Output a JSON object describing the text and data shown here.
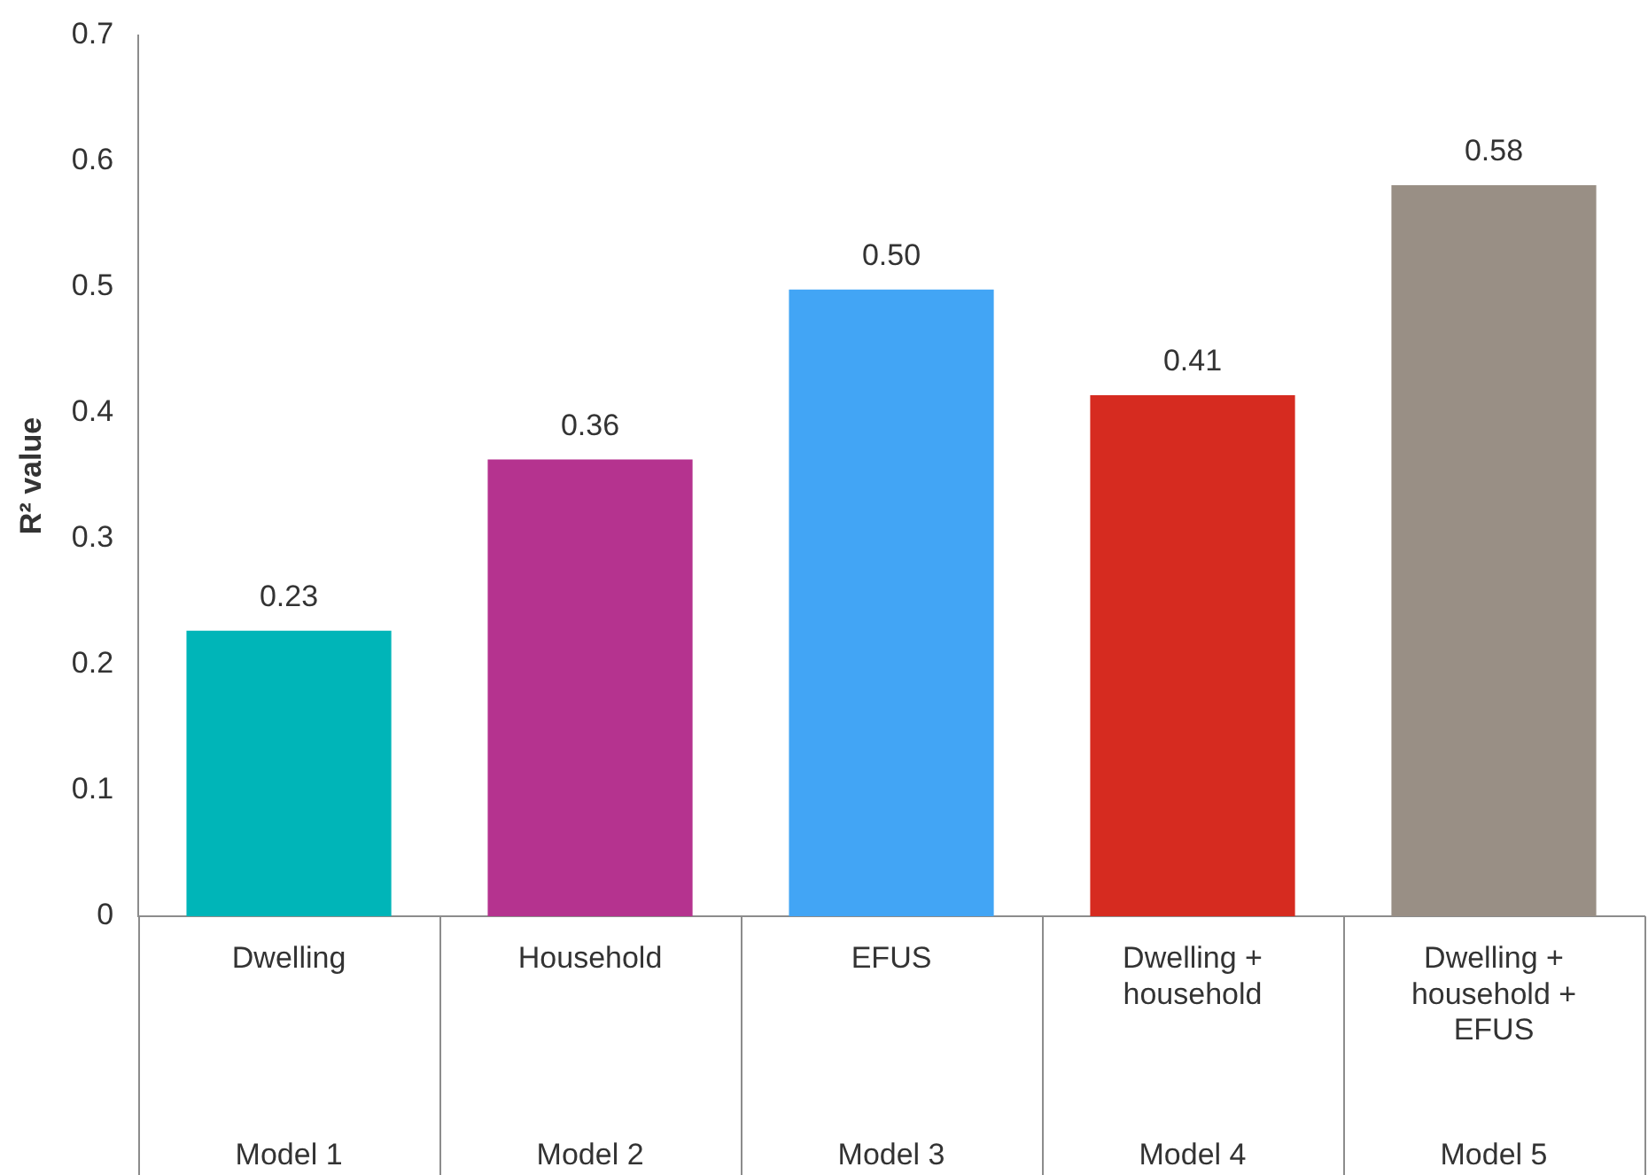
{
  "chart_data": {
    "type": "bar",
    "ylabel": "R² value",
    "categories": [
      "Dwelling",
      "Household",
      "EFUS",
      "Dwelling + household",
      "Dwelling + household + EFUS"
    ],
    "values": [
      0.227,
      0.363,
      0.498,
      0.414,
      0.581
    ],
    "colors": [
      "#00b5b8",
      "#b5338f",
      "#42a5f5",
      "#d62b20",
      "#998f85"
    ],
    "value_labels": [
      "0.23",
      "0.36",
      "0.50",
      "0.41",
      "0.58"
    ],
    "annotations": [
      "Model 1",
      "Model 2",
      "Model 3",
      "Model 4",
      "Model 5"
    ],
    "ylim": [
      0,
      0.7
    ],
    "yticks": [
      0,
      0.1,
      0.2,
      0.3,
      0.4,
      0.5,
      0.6,
      0.7
    ],
    "grid": false,
    "legend": false
  }
}
